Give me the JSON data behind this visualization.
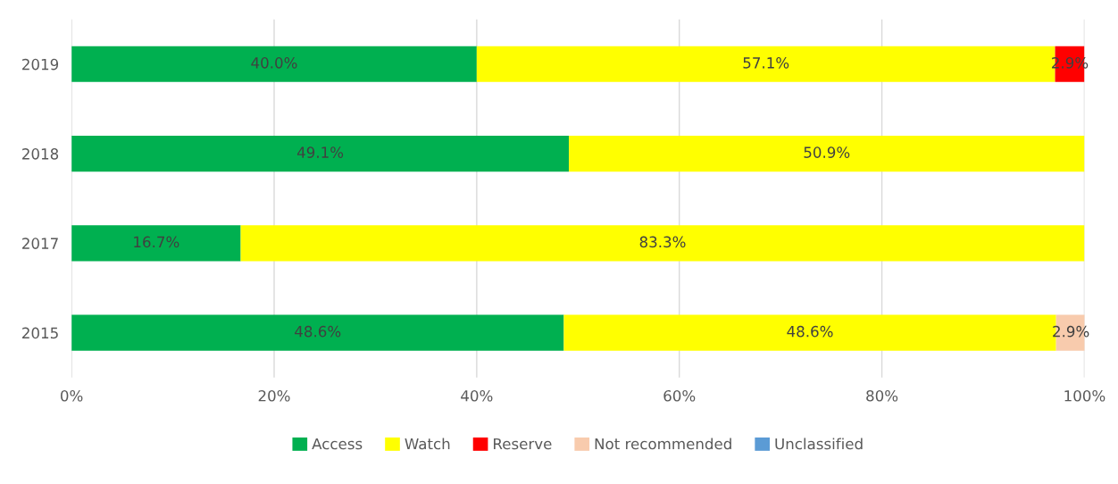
{
  "chart_data": {
    "type": "bar",
    "orientation": "horizontal",
    "stacked": true,
    "categories": [
      "2019",
      "2018",
      "2017",
      "2015"
    ],
    "series": [
      {
        "name": "Access",
        "color": "#00b050",
        "values": [
          40.0,
          49.1,
          16.7,
          48.6
        ],
        "value_labels": [
          "40.0%",
          "49.1%",
          "16.7%",
          "48.6%"
        ]
      },
      {
        "name": "Watch",
        "color": "#ffff00",
        "values": [
          57.1,
          50.9,
          83.3,
          48.6
        ],
        "value_labels": [
          "57.1%",
          "50.9%",
          "83.3%",
          "48.6%"
        ]
      },
      {
        "name": "Reserve",
        "color": "#ff0000",
        "values": [
          2.9,
          null,
          null,
          null
        ],
        "value_labels": [
          "2.9%",
          null,
          null,
          null
        ]
      },
      {
        "name": "Not recommended",
        "color": "#f8cbad",
        "values": [
          null,
          null,
          null,
          2.9
        ],
        "value_labels": [
          null,
          null,
          null,
          "2.9%"
        ]
      },
      {
        "name": "Unclassified",
        "color": "#5b9bd5",
        "values": [
          null,
          null,
          null,
          null
        ]
      }
    ],
    "xlim": [
      0,
      100
    ],
    "xticks": [
      {
        "value": 0,
        "label": "0%"
      },
      {
        "value": 20,
        "label": "20%"
      },
      {
        "value": 40,
        "label": "40%"
      },
      {
        "value": 60,
        "label": "60%"
      },
      {
        "value": 80,
        "label": "80%"
      },
      {
        "value": 100,
        "label": "100%"
      }
    ],
    "grid": "x",
    "legend": "bottom"
  }
}
